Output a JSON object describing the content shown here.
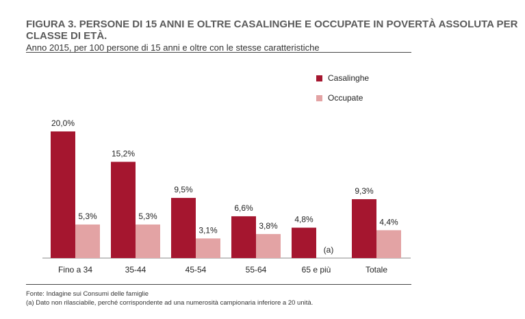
{
  "header": {
    "title_bold": "FIGURA 3. PERSONE DI 15 ANNI E OLTRE CASALINGHE E OCCUPATE IN POVERTÀ ASSOLUTA PER CLASSE DI ETÀ.",
    "title_rest": "Anno 2015, per 100 persone di 15 anni e oltre con le stesse caratteristiche"
  },
  "colors": {
    "series1": "#a5162f",
    "series2": "#e3a3a4"
  },
  "chart_data": {
    "type": "bar",
    "categories": [
      "Fino a 34",
      "35-44",
      "45-54",
      "55-64",
      "65 e più",
      "Totale"
    ],
    "series": [
      {
        "name": "Casalinghe",
        "values": [
          20.0,
          15.2,
          9.5,
          6.6,
          4.8,
          9.3
        ],
        "labels": [
          "20,0%",
          "15,2%",
          "9,5%",
          "6,6%",
          "4,8%",
          "9,3%"
        ]
      },
      {
        "name": "Occupate",
        "values": [
          5.3,
          5.3,
          3.1,
          3.8,
          null,
          4.4
        ],
        "labels": [
          "5,3%",
          "5,3%",
          "3,1%",
          "3,8%",
          "(a)",
          "4,4%"
        ]
      }
    ],
    "legend_position": "top-right",
    "grid": false
  },
  "footer": {
    "source": "Fonte: Indagine sui Consumi delle famiglie",
    "note": "(a) Dato non rilasciabile, perché corrispondente ad una numerosità campionaria inferiore a 20 unità."
  }
}
